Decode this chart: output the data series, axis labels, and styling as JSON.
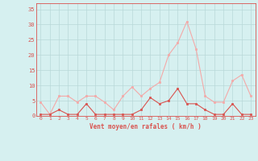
{
  "x": [
    0,
    1,
    2,
    3,
    4,
    5,
    6,
    7,
    8,
    9,
    10,
    11,
    12,
    13,
    14,
    15,
    16,
    17,
    18,
    19,
    20,
    21,
    22,
    23
  ],
  "vent_moyen": [
    0.5,
    0.5,
    2,
    0.5,
    0.5,
    4,
    0.5,
    0.5,
    0.5,
    0.5,
    0.5,
    2,
    6,
    4,
    5,
    9,
    4,
    4,
    2,
    0.5,
    0.5,
    4,
    0.5,
    0.5
  ],
  "en_rafales": [
    4.5,
    0.5,
    6.5,
    6.5,
    4.5,
    6.5,
    6.5,
    4.5,
    2,
    6.5,
    9.5,
    6.5,
    9,
    11,
    20,
    24,
    31,
    22,
    6.5,
    4.5,
    4.5,
    11.5,
    13.5,
    6.5
  ],
  "vent_moyen_color": "#d9534f",
  "en_rafales_color": "#f4a9a8",
  "bg_color": "#d6f0f0",
  "grid_color": "#b8d8d8",
  "xlabel": "Vent moyen/en rafales ( km/h )",
  "ylabel_ticks": [
    0,
    5,
    10,
    15,
    20,
    25,
    30,
    35
  ],
  "ylim": [
    0,
    37
  ],
  "xlim": [
    -0.5,
    23.5
  ],
  "title": ""
}
